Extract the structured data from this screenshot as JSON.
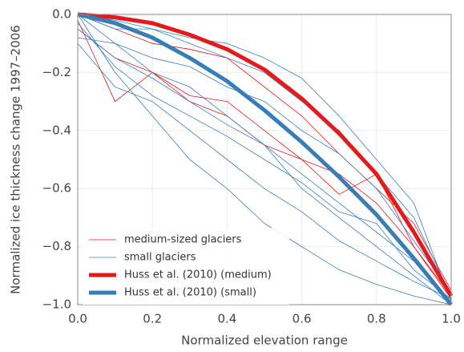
{
  "chart_data": {
    "type": "line",
    "xlabel": "Normalized elevation range",
    "ylabel": "Normalized ice thickness change 1997–2006",
    "x": [
      0,
      0.1,
      0.2,
      0.3,
      0.4,
      0.5,
      0.6,
      0.7,
      0.8,
      0.9,
      1.0
    ],
    "xlim": [
      0,
      1
    ],
    "ylim": [
      -1,
      0
    ],
    "xticks": [
      {
        "value": 0,
        "label": "0.0"
      },
      {
        "value": 0.2,
        "label": "0.2"
      },
      {
        "value": 0.4,
        "label": "0.4"
      },
      {
        "value": 0.6,
        "label": "0.6"
      },
      {
        "value": 0.8,
        "label": "0.8"
      },
      {
        "value": 1,
        "label": "1.0"
      }
    ],
    "yticks": [
      {
        "value": 0,
        "label": "0.0"
      },
      {
        "value": -0.2,
        "label": "−0.2"
      },
      {
        "value": -0.4,
        "label": "−0.4"
      },
      {
        "value": -0.6,
        "label": "−0.6"
      },
      {
        "value": -0.8,
        "label": "−0.8"
      },
      {
        "value": -1,
        "label": "−1.0"
      }
    ],
    "grid": true,
    "legend": "lower left",
    "series": [
      {
        "name": "medium-sized glaciers",
        "color": "#e41a1c",
        "linewidth": 0.8,
        "lines": [
          [
            -0.02,
            -0.3,
            -0.2,
            -0.3,
            -0.35,
            -0.45,
            -0.5,
            -0.62,
            -0.55,
            -0.8,
            -0.98
          ],
          [
            0,
            -0.05,
            -0.1,
            -0.12,
            -0.15,
            -0.25,
            -0.35,
            -0.48,
            -0.6,
            -0.72,
            -0.95
          ],
          [
            -0.05,
            -0.15,
            -0.2,
            -0.28,
            -0.3,
            -0.4,
            -0.5,
            -0.55,
            -0.65,
            -0.8,
            -0.97
          ]
        ]
      },
      {
        "name": "small glaciers",
        "color": "#377eb8",
        "linewidth": 0.8,
        "lines": [
          [
            0,
            -0.1,
            -0.2,
            -0.25,
            -0.35,
            -0.45,
            -0.6,
            -0.7,
            -0.8,
            -0.9,
            -1.0
          ],
          [
            -0.1,
            -0.25,
            -0.3,
            -0.4,
            -0.5,
            -0.6,
            -0.68,
            -0.78,
            -0.85,
            -0.92,
            -0.98
          ],
          [
            0,
            -0.02,
            -0.05,
            -0.1,
            -0.15,
            -0.2,
            -0.3,
            -0.4,
            -0.55,
            -0.7,
            -0.97
          ],
          [
            -0.05,
            -0.15,
            -0.22,
            -0.3,
            -0.38,
            -0.45,
            -0.55,
            -0.65,
            -0.75,
            -0.85,
            -1.0
          ],
          [
            0,
            -0.2,
            -0.35,
            -0.5,
            -0.6,
            -0.72,
            -0.8,
            -0.88,
            -0.93,
            -0.97,
            -1.0
          ],
          [
            -0.08,
            -0.1,
            -0.15,
            -0.18,
            -0.25,
            -0.3,
            -0.4,
            -0.48,
            -0.6,
            -0.78,
            -0.96
          ],
          [
            0,
            -0.05,
            -0.05,
            -0.08,
            -0.1,
            -0.15,
            -0.22,
            -0.35,
            -0.5,
            -0.65,
            -0.99
          ],
          [
            -0.03,
            -0.18,
            -0.28,
            -0.35,
            -0.42,
            -0.5,
            -0.58,
            -0.68,
            -0.72,
            -0.88,
            -0.98
          ]
        ]
      },
      {
        "name": "Huss et al. (2010) (medium)",
        "color": "#e41a1c",
        "linewidth": 5,
        "lines": [
          [
            0,
            -0.01,
            -0.03,
            -0.07,
            -0.12,
            -0.19,
            -0.29,
            -0.41,
            -0.55,
            -0.75,
            -0.97
          ]
        ]
      },
      {
        "name": "Huss et al. (2010) (small)",
        "color": "#377eb8",
        "linewidth": 5,
        "lines": [
          [
            0,
            -0.03,
            -0.08,
            -0.15,
            -0.23,
            -0.33,
            -0.44,
            -0.56,
            -0.69,
            -0.84,
            -1.0
          ]
        ]
      }
    ]
  }
}
